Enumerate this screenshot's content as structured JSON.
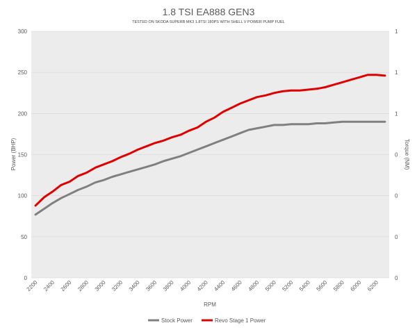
{
  "chart_data": {
    "type": "line",
    "title": "1.8 TSI EA888 GEN3",
    "subtitle": "TESTED ON SKODA SUPERB MK3 1.8TSI 180PS WITH SHELL V POWER PUMP FUEL",
    "xlabel": "RPM",
    "ylabel": "Power (BHP)",
    "y2label": "Torque (NM)",
    "ylim": [
      0,
      300
    ],
    "y_ticks": [
      "0",
      "50",
      "100",
      "150",
      "200",
      "250",
      "300"
    ],
    "y2_ticks": [
      "0",
      "0",
      "0",
      "0",
      "1",
      "1",
      "1"
    ],
    "x_ticks": [
      "2200",
      "2400",
      "2600",
      "2800",
      "3000",
      "3200",
      "3400",
      "3600",
      "3800",
      "4000",
      "4200",
      "4400",
      "4600",
      "4800",
      "5000",
      "5200",
      "5400",
      "5600",
      "5800",
      "6000",
      "6200"
    ],
    "x": [
      2200,
      2300,
      2400,
      2500,
      2600,
      2700,
      2800,
      2900,
      3000,
      3100,
      3200,
      3300,
      3400,
      3500,
      3600,
      3700,
      3800,
      3900,
      4000,
      4100,
      4200,
      4300,
      4400,
      4500,
      4600,
      4700,
      4800,
      4900,
      5000,
      5100,
      5200,
      5300,
      5400,
      5500,
      5600,
      5700,
      5800,
      5900,
      6000,
      6100,
      6200,
      6300
    ],
    "series": [
      {
        "name": "Stock Power",
        "color": "#808080",
        "values": [
          77,
          84,
          91,
          97,
          102,
          107,
          111,
          116,
          119,
          123,
          126,
          129,
          132,
          135,
          138,
          142,
          145,
          148,
          152,
          156,
          160,
          164,
          168,
          172,
          176,
          180,
          182,
          184,
          186,
          186,
          187,
          187,
          187,
          188,
          188,
          189,
          190,
          190,
          190,
          190,
          190,
          190
        ]
      },
      {
        "name": "Revo Stage 1 Power",
        "color": "#e00000",
        "values": [
          88,
          98,
          105,
          113,
          117,
          124,
          128,
          134,
          138,
          142,
          147,
          151,
          156,
          160,
          164,
          167,
          171,
          174,
          179,
          183,
          190,
          195,
          202,
          207,
          212,
          216,
          220,
          222,
          225,
          227,
          228,
          228,
          229,
          230,
          232,
          235,
          238,
          241,
          244,
          247,
          247,
          246
        ]
      }
    ],
    "legend_position": "bottom",
    "grid": true
  }
}
